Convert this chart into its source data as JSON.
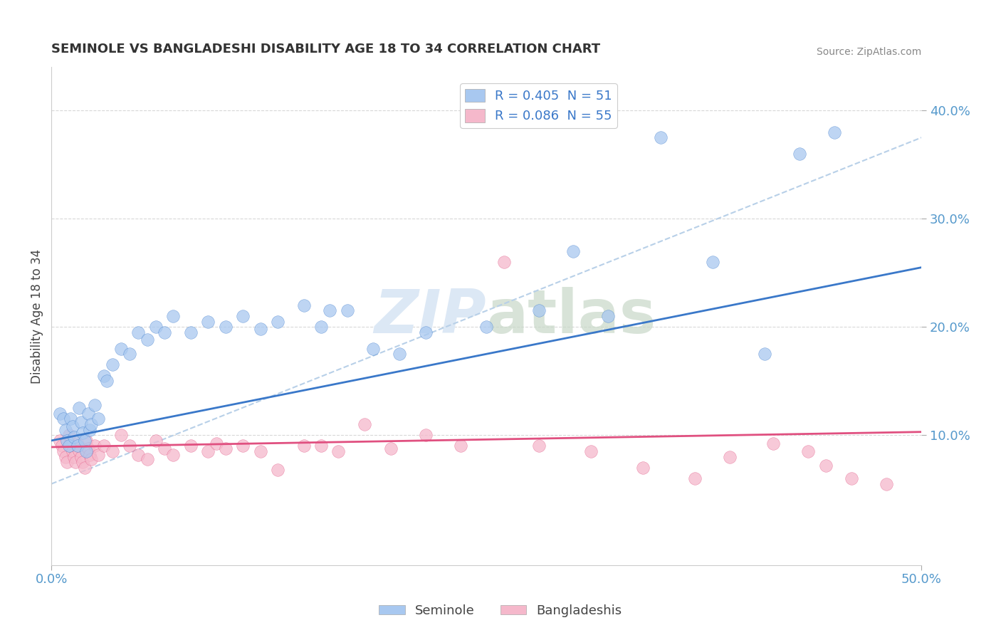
{
  "title": "SEMINOLE VS BANGLADESHI DISABILITY AGE 18 TO 34 CORRELATION CHART",
  "source_text": "Source: ZipAtlas.com",
  "ylabel": "Disability Age 18 to 34",
  "xlim": [
    0.0,
    0.5
  ],
  "ylim": [
    -0.02,
    0.44
  ],
  "xtick_positions": [
    0.0,
    0.5
  ],
  "xtick_labels": [
    "0.0%",
    "50.0%"
  ],
  "yticks_right": [
    0.1,
    0.2,
    0.3,
    0.4
  ],
  "seminole_R": 0.405,
  "seminole_N": 51,
  "bangladeshi_R": 0.086,
  "bangladeshi_N": 55,
  "seminole_color": "#a8c8f0",
  "bangladeshi_color": "#f5b8cb",
  "seminole_line_color": "#3a78c9",
  "bangladeshi_line_color": "#e05080",
  "ref_line_color": "#b8d0e8",
  "grid_color": "#d8d8d8",
  "background_color": "#ffffff",
  "watermark_color": "#dce8f5",
  "tick_color": "#5599cc",
  "title_color": "#333333",
  "ylabel_color": "#444444",
  "source_color": "#888888",
  "legend_label_color": "#3a78c9",
  "bottom_label_color": "#444444",
  "seminole_x": [
    0.005,
    0.007,
    0.008,
    0.009,
    0.01,
    0.011,
    0.012,
    0.013,
    0.015,
    0.016,
    0.017,
    0.018,
    0.019,
    0.02,
    0.021,
    0.022,
    0.023,
    0.025,
    0.027,
    0.03,
    0.032,
    0.035,
    0.04,
    0.045,
    0.05,
    0.055,
    0.06,
    0.065,
    0.07,
    0.08,
    0.09,
    0.1,
    0.11,
    0.12,
    0.13,
    0.145,
    0.155,
    0.16,
    0.17,
    0.185,
    0.2,
    0.215,
    0.25,
    0.28,
    0.3,
    0.32,
    0.35,
    0.38,
    0.41,
    0.43,
    0.45
  ],
  "seminole_y": [
    0.12,
    0.115,
    0.105,
    0.095,
    0.09,
    0.115,
    0.108,
    0.098,
    0.09,
    0.125,
    0.112,
    0.102,
    0.095,
    0.085,
    0.12,
    0.105,
    0.11,
    0.128,
    0.115,
    0.155,
    0.15,
    0.165,
    0.18,
    0.175,
    0.195,
    0.188,
    0.2,
    0.195,
    0.21,
    0.195,
    0.205,
    0.2,
    0.21,
    0.198,
    0.205,
    0.22,
    0.2,
    0.215,
    0.215,
    0.18,
    0.175,
    0.195,
    0.2,
    0.215,
    0.27,
    0.21,
    0.375,
    0.26,
    0.175,
    0.36,
    0.38
  ],
  "bangladeshi_x": [
    0.005,
    0.006,
    0.007,
    0.008,
    0.009,
    0.01,
    0.011,
    0.012,
    0.013,
    0.014,
    0.015,
    0.016,
    0.017,
    0.018,
    0.019,
    0.02,
    0.021,
    0.022,
    0.023,
    0.025,
    0.027,
    0.03,
    0.035,
    0.04,
    0.045,
    0.05,
    0.055,
    0.06,
    0.065,
    0.07,
    0.08,
    0.09,
    0.095,
    0.1,
    0.11,
    0.12,
    0.13,
    0.145,
    0.155,
    0.165,
    0.18,
    0.195,
    0.215,
    0.235,
    0.26,
    0.28,
    0.31,
    0.34,
    0.37,
    0.39,
    0.415,
    0.435,
    0.445,
    0.46,
    0.48
  ],
  "bangladeshi_y": [
    0.095,
    0.09,
    0.085,
    0.08,
    0.075,
    0.1,
    0.09,
    0.085,
    0.08,
    0.075,
    0.092,
    0.086,
    0.08,
    0.075,
    0.07,
    0.095,
    0.088,
    0.082,
    0.078,
    0.09,
    0.082,
    0.09,
    0.085,
    0.1,
    0.09,
    0.082,
    0.078,
    0.095,
    0.088,
    0.082,
    0.09,
    0.085,
    0.092,
    0.088,
    0.09,
    0.085,
    0.068,
    0.09,
    0.09,
    0.085,
    0.11,
    0.088,
    0.1,
    0.09,
    0.26,
    0.09,
    0.085,
    0.07,
    0.06,
    0.08,
    0.092,
    0.085,
    0.072,
    0.06,
    0.055
  ],
  "seminole_trendline_x0": 0.0,
  "seminole_trendline_x1": 0.5,
  "seminole_trendline_y0": 0.095,
  "seminole_trendline_y1": 0.255,
  "bangladeshi_trendline_x0": 0.0,
  "bangladeshi_trendline_x1": 0.5,
  "bangladeshi_trendline_y0": 0.089,
  "bangladeshi_trendline_y1": 0.103,
  "ref_trendline_x0": 0.0,
  "ref_trendline_x1": 0.5,
  "ref_trendline_y0": 0.055,
  "ref_trendline_y1": 0.375
}
